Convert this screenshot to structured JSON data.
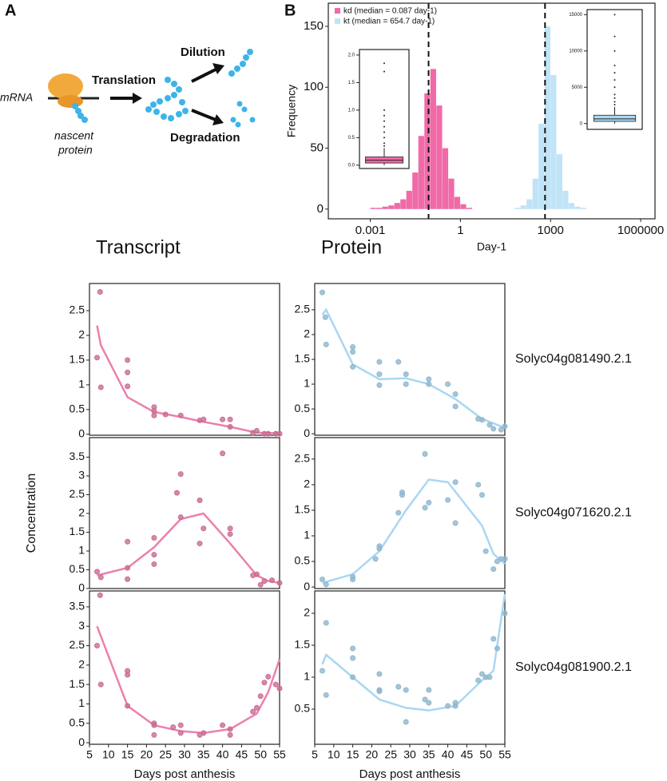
{
  "diagram": {
    "panel": "A",
    "mrna": "mRNA",
    "translation": "Translation",
    "dilution": "Dilution",
    "degradation": "Degradation",
    "nascent_protein": [
      "nascent",
      "protein"
    ]
  },
  "chart_data": [
    {
      "type": "hist",
      "panel": "B",
      "xlabel": "Day-1",
      "ylabel": "Frequency",
      "log_x": true,
      "xlim": [
        4e-05,
        3000000
      ],
      "xticks": [
        0.001,
        1,
        1000,
        1000000
      ],
      "ylim": [
        -8,
        169
      ],
      "yticks": [
        0,
        50,
        100,
        150
      ],
      "series": [
        {
          "name": "kd (median = 0.087 day-1)",
          "color": "#f06aa8",
          "median": 0.087,
          "bins": [
            0.001,
            0.00158,
            0.00251,
            0.00398,
            0.00631,
            0.01,
            0.0158,
            0.0251,
            0.0398,
            0.0631,
            0.1,
            0.158,
            0.251,
            0.398,
            0.631,
            1,
            1.58,
            2.51
          ],
          "values": [
            1,
            1,
            2,
            3,
            5,
            8,
            15,
            30,
            60,
            95,
            115,
            85,
            50,
            25,
            10,
            4,
            1
          ]
        },
        {
          "name": "kt (median = 654.7 day-1)",
          "color": "#bfe3f7",
          "median": 654.7,
          "bins": [
            63.1,
            100,
            158,
            251,
            398,
            631,
            1000,
            1580,
            2510,
            3980,
            6310,
            10000,
            15800
          ],
          "values": [
            1,
            3,
            8,
            25,
            70,
            150,
            110,
            45,
            15,
            5,
            2,
            1
          ]
        }
      ]
    },
    {
      "type": "box",
      "color": "#f06aa8",
      "ylim": [
        -0.06,
        2.1
      ],
      "yticks": [
        {
          "value": 0,
          "label": "0.0"
        },
        {
          "value": 0.5,
          "label": "0.5"
        },
        {
          "value": 1,
          "label": "1.0"
        },
        {
          "value": 1.5,
          "label": "1.5"
        },
        {
          "value": 2,
          "label": "2.0"
        }
      ],
      "box": {
        "min": 0,
        "q1": 0.04,
        "median": 0.09,
        "q3": 0.15,
        "max": 0.31
      },
      "outliers": [
        0.35,
        0.4,
        0.5,
        0.6,
        0.7,
        0.8,
        0.9,
        1.0,
        1.7,
        1.85
      ]
    },
    {
      "type": "box",
      "color": "#a9d7f3",
      "ylim": [
        -800,
        15700
      ],
      "yticks": [
        0,
        5000,
        10000,
        15000
      ],
      "box": {
        "min": 0,
        "q1": 300,
        "median": 650,
        "q3": 1150,
        "max": 2300
      },
      "outliers": [
        2600,
        3000,
        3500,
        4000,
        5000,
        6000,
        7000,
        8000,
        10000,
        12000,
        15000
      ]
    },
    {
      "type": "line",
      "title": "Transcript",
      "color": "#ec80ad",
      "xlim": [
        5,
        55
      ],
      "ylim": [
        -0.02,
        3.05
      ],
      "yticks": [
        0,
        0.5,
        1,
        1.5,
        2,
        2.5
      ],
      "points": {
        "x": [
          7,
          7.8,
          8,
          15,
          15,
          15,
          22,
          22,
          22,
          25,
          29,
          34,
          35,
          40,
          42,
          42,
          48,
          49,
          51,
          52,
          54,
          55
        ],
        "y": [
          1.55,
          2.88,
          0.95,
          1.5,
          1.25,
          0.97,
          0.47,
          0.38,
          0.55,
          0.4,
          0.38,
          0.28,
          0.3,
          0.3,
          0.3,
          0.15,
          0.03,
          0.07,
          0.01,
          0.01,
          0.01,
          0.01
        ]
      },
      "fit": {
        "x": [
          7,
          8,
          15,
          22,
          29,
          35,
          42,
          49,
          55
        ],
        "y": [
          2.2,
          1.8,
          0.75,
          0.45,
          0.35,
          0.25,
          0.15,
          0.03,
          0.02
        ]
      }
    },
    {
      "type": "line",
      "title": "Protein",
      "annotation": "Solyc04g081490.2.1",
      "color": "#a9d7f3",
      "xlim": [
        5,
        55
      ],
      "ylim": [
        -0.03,
        3.03
      ],
      "yticks": [
        0,
        0.5,
        1,
        1.5,
        2,
        2.5
      ],
      "points": {
        "x": [
          7,
          7.8,
          8,
          15,
          15,
          15,
          22,
          22,
          22,
          27,
          29,
          29,
          35,
          35,
          40,
          42,
          42,
          48,
          49,
          51,
          52,
          54,
          55
        ],
        "y": [
          2.85,
          2.35,
          1.8,
          1.75,
          1.65,
          1.35,
          1.45,
          1.2,
          0.98,
          1.45,
          1.0,
          1.2,
          1.1,
          1.0,
          1.0,
          0.8,
          0.55,
          0.3,
          0.28,
          0.18,
          0.1,
          0.08,
          0.15
        ]
      },
      "fit": {
        "x": [
          7,
          8,
          15,
          22,
          29,
          35,
          42,
          49,
          55
        ],
        "y": [
          2.4,
          2.5,
          1.4,
          1.1,
          1.12,
          1.0,
          0.7,
          0.3,
          0.12
        ]
      }
    },
    {
      "type": "line",
      "ylabel": "Concentration",
      "color": "#ec80ad",
      "xlim": [
        5,
        55
      ],
      "ylim": [
        0,
        4.02
      ],
      "yticks": [
        0,
        0.5,
        1,
        1.5,
        2,
        2.5,
        3,
        3.5
      ],
      "points": {
        "x": [
          7,
          8,
          15,
          15,
          15,
          22,
          22,
          22,
          28,
          29,
          29,
          34,
          34,
          35,
          40,
          42,
          42,
          48,
          49,
          50,
          51,
          53,
          55
        ],
        "y": [
          0.45,
          0.3,
          1.25,
          0.55,
          0.25,
          1.35,
          0.9,
          0.65,
          2.55,
          3.05,
          1.9,
          2.35,
          1.2,
          1.6,
          3.6,
          1.6,
          1.45,
          0.35,
          0.38,
          0.1,
          0.2,
          0.22,
          0.15
        ]
      },
      "fit": {
        "x": [
          7,
          15,
          22,
          29,
          35,
          42,
          49,
          52,
          55
        ],
        "y": [
          0.35,
          0.55,
          1.1,
          1.85,
          2.0,
          1.2,
          0.35,
          0.2,
          0.15
        ]
      }
    },
    {
      "type": "line",
      "annotation": "Solyc04g071620.2.1",
      "color": "#a9d7f3",
      "xlim": [
        5,
        55
      ],
      "ylim": [
        -0.03,
        2.92
      ],
      "yticks": [
        0,
        0.5,
        1,
        1.5,
        2,
        2.5
      ],
      "points": {
        "x": [
          7,
          8,
          15,
          15,
          21,
          22,
          22,
          27,
          28,
          28,
          34,
          34,
          35,
          40,
          42,
          42,
          48,
          49,
          50,
          52,
          53,
          54,
          55
        ],
        "y": [
          0.15,
          0.05,
          0.2,
          0.15,
          0.55,
          0.75,
          0.8,
          1.45,
          1.85,
          1.8,
          2.6,
          1.55,
          1.65,
          1.7,
          2.05,
          1.25,
          2.0,
          1.8,
          0.7,
          0.35,
          0.5,
          0.55,
          0.55
        ]
      },
      "fit": {
        "x": [
          7,
          15,
          22,
          29,
          35,
          40,
          49,
          52,
          55
        ],
        "y": [
          0.08,
          0.25,
          0.7,
          1.5,
          2.1,
          2.05,
          1.2,
          0.65,
          0.45
        ]
      }
    },
    {
      "type": "line",
      "xlabel": "Days post anthesis",
      "color": "#ec80ad",
      "xlim": [
        5,
        55
      ],
      "ylim": [
        -0.04,
        3.91
      ],
      "yticks": [
        0,
        0.5,
        1,
        1.5,
        2,
        2.5,
        3,
        3.5
      ],
      "xticks": [
        5,
        10,
        15,
        20,
        25,
        30,
        35,
        40,
        45,
        50,
        55
      ],
      "points": {
        "x": [
          7,
          7.8,
          8,
          15,
          15,
          15,
          22,
          22,
          22,
          27,
          29,
          29,
          34,
          35,
          40,
          42,
          42,
          48,
          49,
          50,
          51,
          52,
          54,
          55
        ],
        "y": [
          2.5,
          3.8,
          1.5,
          1.85,
          1.75,
          0.95,
          0.2,
          0.45,
          0.5,
          0.4,
          0.45,
          0.25,
          0.2,
          0.25,
          0.45,
          0.2,
          0.35,
          0.8,
          0.9,
          1.2,
          1.55,
          1.7,
          1.5,
          1.4
        ]
      },
      "fit": {
        "x": [
          7,
          15,
          22,
          29,
          35,
          42,
          49,
          52,
          55
        ],
        "y": [
          3.0,
          0.95,
          0.45,
          0.3,
          0.25,
          0.35,
          0.75,
          1.3,
          2.15
        ]
      }
    },
    {
      "type": "line",
      "xlabel": "Days post anthesis",
      "annotation": "Solyc04g081900.2.1",
      "color": "#a9d7f3",
      "xlim": [
        5,
        55
      ],
      "ylim": [
        -0.05,
        2.35
      ],
      "yticks": [
        0.5,
        1,
        1.5,
        2
      ],
      "xticks": [
        5,
        10,
        15,
        20,
        25,
        30,
        35,
        40,
        45,
        50,
        55
      ],
      "points": {
        "x": [
          7,
          8,
          8,
          15,
          15,
          15,
          22,
          22,
          22,
          27,
          29,
          29,
          34,
          35,
          35,
          40,
          42,
          42,
          48,
          49,
          50,
          51,
          52,
          53,
          55
        ],
        "y": [
          1.1,
          1.85,
          0.72,
          1.45,
          1.3,
          1.0,
          1.05,
          0.8,
          0.78,
          0.85,
          0.8,
          0.3,
          0.65,
          0.8,
          0.6,
          0.55,
          0.6,
          0.55,
          0.95,
          1.05,
          1.0,
          1.0,
          1.6,
          1.45,
          2.0
        ]
      },
      "fit": {
        "x": [
          7,
          8,
          15,
          22,
          29,
          35,
          42,
          49,
          52,
          55
        ],
        "y": [
          1.2,
          1.35,
          1.0,
          0.65,
          0.52,
          0.48,
          0.55,
          0.95,
          1.1,
          2.3
        ]
      }
    }
  ]
}
